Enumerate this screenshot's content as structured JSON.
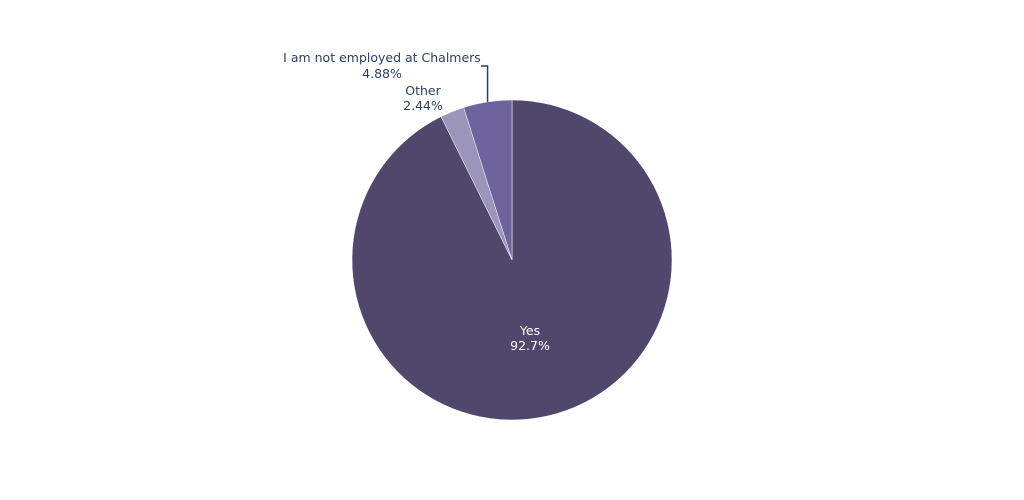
{
  "chart_data": {
    "type": "pie",
    "slices": [
      {
        "label": "Yes",
        "percent_text": "92.7%",
        "value": 92.68,
        "color": "#51476d",
        "label_color": "#ffffff"
      },
      {
        "label": "Other",
        "percent_text": "2.44%",
        "value": 2.44,
        "color": "#9b95bb",
        "label_color": "#2a3f5f"
      },
      {
        "label": "I am not employed at Chalmers",
        "percent_text": "4.88%",
        "value": 4.88,
        "color": "#6e639c",
        "label_color": "#2a3f5f"
      }
    ],
    "direction": "clockwise",
    "start_angle": "top",
    "legend": "none"
  }
}
